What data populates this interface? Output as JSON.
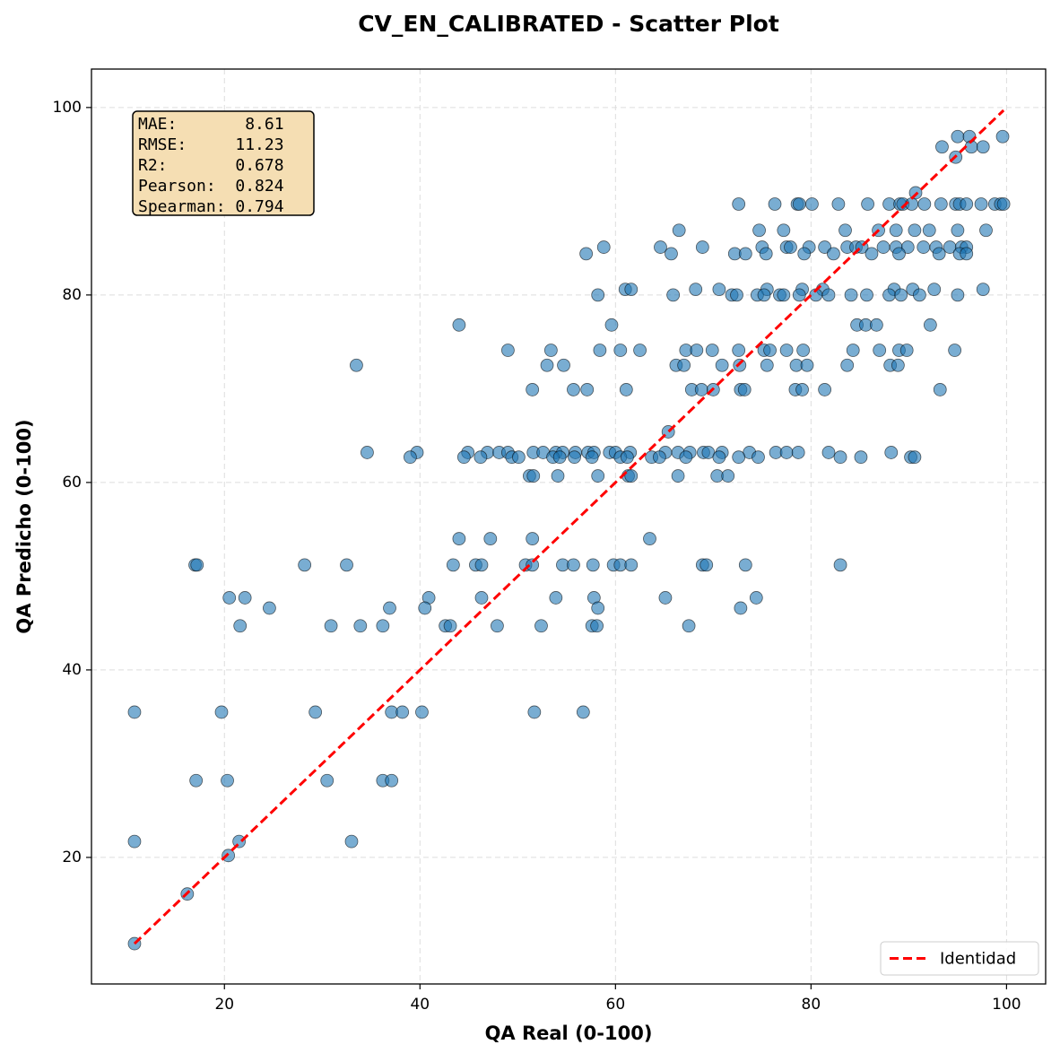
{
  "chart_data": {
    "type": "scatter",
    "title": "CV_EN_CALIBRATED - Scatter Plot",
    "x_label": "QA Real (0-100)",
    "y_label": "QA Predicho (0-100)",
    "xlim": [
      6.4,
      104.0
    ],
    "ylim": [
      6.5,
      104.1
    ],
    "xticks": [
      20,
      40,
      60,
      80,
      100
    ],
    "yticks": [
      20,
      40,
      60,
      80,
      100
    ],
    "grid": true,
    "legend": "lower right",
    "stats_box": [
      "MAE:       8.61",
      "RMSE:     11.23",
      "R2:       0.678",
      "Pearson:  0.824",
      "Spearman: 0.794"
    ],
    "color": "#1f77b4",
    "x": [
      95.0,
      96.2,
      99.6,
      93.4,
      96.4,
      97.6,
      94.8,
      90.7,
      72.6,
      76.3,
      78.6,
      78.8,
      80.1,
      82.8,
      85.8,
      88.0,
      89.1,
      89.4,
      90.3,
      91.6,
      93.3,
      94.8,
      95.2,
      95.9,
      97.4,
      98.8,
      99.4,
      99.7,
      66.5,
      74.7,
      77.2,
      83.5,
      86.9,
      88.7,
      90.6,
      92.1,
      95.0,
      97.9,
      58.8,
      64.6,
      68.9,
      75.0,
      77.5,
      77.9,
      79.8,
      81.4,
      83.7,
      84.6,
      85.2,
      87.4,
      88.7,
      89.9,
      91.5,
      92.8,
      94.2,
      95.4,
      95.9,
      57.0,
      65.7,
      72.2,
      73.3,
      75.4,
      79.3,
      82.3,
      86.2,
      89.0,
      93.1,
      95.2,
      95.9,
      61.0,
      61.6,
      68.2,
      70.6,
      75.5,
      79.1,
      81.2,
      88.5,
      90.4,
      92.6,
      97.6,
      58.2,
      65.9,
      71.9,
      72.4,
      74.5,
      75.2,
      76.8,
      77.2,
      78.8,
      80.5,
      81.8,
      84.1,
      85.7,
      88.0,
      89.2,
      91.1,
      95.0,
      44.0,
      59.6,
      84.7,
      85.6,
      86.7,
      92.2,
      49.0,
      53.4,
      58.4,
      60.5,
      62.5,
      67.2,
      68.3,
      69.9,
      72.6,
      75.2,
      75.8,
      77.5,
      79.2,
      84.3,
      87.0,
      89.0,
      89.8,
      94.7,
      33.5,
      53.0,
      54.7,
      66.2,
      67.0,
      70.9,
      72.7,
      75.5,
      78.5,
      79.6,
      83.7,
      88.1,
      88.9,
      51.5,
      55.7,
      57.1,
      61.1,
      67.8,
      68.8,
      70.0,
      72.8,
      73.2,
      78.4,
      79.1,
      81.4,
      93.2,
      65.4,
      34.6,
      39.7,
      44.9,
      46.9,
      48.1,
      49.0,
      51.6,
      52.6,
      53.9,
      54.6,
      55.9,
      57.2,
      57.8,
      59.4,
      60.0,
      61.5,
      65.1,
      66.4,
      67.6,
      69.0,
      69.5,
      70.9,
      73.7,
      76.4,
      77.5,
      78.7,
      81.8,
      88.2,
      39.0,
      44.5,
      46.2,
      49.4,
      50.1,
      53.6,
      54.3,
      55.8,
      57.6,
      60.5,
      61.2,
      63.7,
      64.5,
      67.2,
      70.6,
      72.6,
      74.6,
      83.0,
      85.1,
      90.2,
      90.6,
      51.2,
      51.6,
      54.1,
      58.2,
      61.3,
      61.6,
      66.4,
      70.4,
      71.5,
      44.0,
      47.2,
      51.5,
      63.5,
      17.0,
      17.2,
      28.2,
      32.5,
      43.4,
      45.7,
      46.3,
      50.8,
      51.5,
      54.6,
      55.7,
      57.7,
      59.8,
      60.5,
      61.6,
      68.9,
      69.3,
      73.3,
      83.0,
      20.5,
      22.1,
      40.9,
      46.3,
      53.9,
      57.8,
      65.1,
      74.4,
      24.6,
      36.9,
      40.5,
      58.2,
      72.8,
      21.6,
      30.9,
      33.9,
      36.2,
      42.6,
      43.1,
      47.9,
      52.4,
      57.6,
      58.1,
      67.5,
      10.8,
      19.7,
      29.3,
      37.1,
      38.2,
      40.2,
      51.7,
      56.7,
      17.1,
      20.3,
      30.5,
      36.2,
      37.1,
      10.8,
      21.5,
      33.0,
      20.4,
      16.2,
      10.8
    ],
    "values": [
      96.9,
      96.9,
      96.9,
      95.8,
      95.8,
      95.8,
      94.7,
      90.9,
      89.7,
      89.7,
      89.7,
      89.7,
      89.7,
      89.7,
      89.7,
      89.7,
      89.7,
      89.7,
      89.7,
      89.7,
      89.7,
      89.7,
      89.7,
      89.7,
      89.7,
      89.7,
      89.7,
      89.7,
      86.9,
      86.9,
      86.9,
      86.9,
      86.9,
      86.9,
      86.9,
      86.9,
      86.9,
      86.9,
      85.1,
      85.1,
      85.1,
      85.1,
      85.1,
      85.1,
      85.1,
      85.1,
      85.1,
      85.1,
      85.1,
      85.1,
      85.1,
      85.1,
      85.1,
      85.1,
      85.1,
      85.1,
      85.1,
      84.4,
      84.4,
      84.4,
      84.4,
      84.4,
      84.4,
      84.4,
      84.4,
      84.4,
      84.4,
      84.4,
      84.4,
      80.6,
      80.6,
      80.6,
      80.6,
      80.6,
      80.6,
      80.6,
      80.6,
      80.6,
      80.6,
      80.6,
      80.0,
      80.0,
      80.0,
      80.0,
      80.0,
      80.0,
      80.0,
      80.0,
      80.0,
      80.0,
      80.0,
      80.0,
      80.0,
      80.0,
      80.0,
      80.0,
      80.0,
      76.8,
      76.8,
      76.8,
      76.8,
      76.8,
      76.8,
      74.1,
      74.1,
      74.1,
      74.1,
      74.1,
      74.1,
      74.1,
      74.1,
      74.1,
      74.1,
      74.1,
      74.1,
      74.1,
      74.1,
      74.1,
      74.1,
      74.1,
      74.1,
      72.5,
      72.5,
      72.5,
      72.5,
      72.5,
      72.5,
      72.5,
      72.5,
      72.5,
      72.5,
      72.5,
      72.5,
      72.5,
      69.9,
      69.9,
      69.9,
      69.9,
      69.9,
      69.9,
      69.9,
      69.9,
      69.9,
      69.9,
      69.9,
      69.9,
      69.9,
      65.4,
      63.2,
      63.2,
      63.2,
      63.2,
      63.2,
      63.2,
      63.2,
      63.2,
      63.2,
      63.2,
      63.2,
      63.2,
      63.2,
      63.2,
      63.2,
      63.2,
      63.2,
      63.2,
      63.2,
      63.2,
      63.2,
      63.2,
      63.2,
      63.2,
      63.2,
      63.2,
      63.2,
      63.2,
      62.7,
      62.7,
      62.7,
      62.7,
      62.7,
      62.7,
      62.7,
      62.7,
      62.7,
      62.7,
      62.7,
      62.7,
      62.7,
      62.7,
      62.7,
      62.7,
      62.7,
      62.7,
      62.7,
      62.7,
      62.7,
      60.7,
      60.7,
      60.7,
      60.7,
      60.7,
      60.7,
      60.7,
      60.7,
      60.7,
      54.0,
      54.0,
      54.0,
      54.0,
      51.2,
      51.2,
      51.2,
      51.2,
      51.2,
      51.2,
      51.2,
      51.2,
      51.2,
      51.2,
      51.2,
      51.2,
      51.2,
      51.2,
      51.2,
      51.2,
      51.2,
      51.2,
      51.2,
      47.7,
      47.7,
      47.7,
      47.7,
      47.7,
      47.7,
      47.7,
      47.7,
      46.6,
      46.6,
      46.6,
      46.6,
      46.6,
      44.7,
      44.7,
      44.7,
      44.7,
      44.7,
      44.7,
      44.7,
      44.7,
      44.7,
      44.7,
      44.7,
      35.5,
      35.5,
      35.5,
      35.5,
      35.5,
      35.5,
      35.5,
      35.5,
      28.2,
      28.2,
      28.2,
      28.2,
      28.2,
      21.7,
      21.7,
      21.7,
      20.2,
      16.1,
      10.8
    ],
    "identity_line": {
      "name": "Identidad",
      "color": "#ff0000",
      "x": [
        10.8,
        99.7
      ],
      "values": [
        10.8,
        99.7
      ]
    }
  }
}
